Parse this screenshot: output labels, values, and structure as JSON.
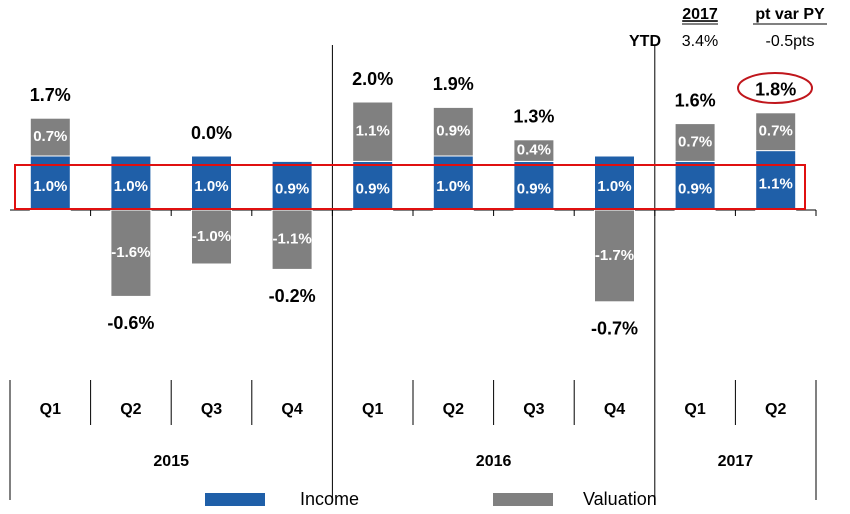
{
  "chart_data": {
    "type": "stacked-bar",
    "groups": [
      {
        "name": "2015",
        "categories": [
          "Q1",
          "Q2",
          "Q3",
          "Q4"
        ]
      },
      {
        "name": "2016",
        "categories": [
          "Q1",
          "Q2",
          "Q3",
          "Q4"
        ]
      },
      {
        "name": "2017",
        "categories": [
          "Q1",
          "Q2"
        ]
      }
    ],
    "series": [
      {
        "name": "Income",
        "color": "#1f5fa8",
        "values": [
          1.0,
          1.0,
          1.0,
          0.9,
          0.9,
          1.0,
          0.9,
          1.0,
          0.9,
          1.1
        ],
        "value_labels": [
          "1.0%",
          "1.0%",
          "1.0%",
          "0.9%",
          "0.9%",
          "1.0%",
          "0.9%",
          "1.0%",
          "0.9%",
          "1.1%"
        ]
      },
      {
        "name": "Valuation",
        "color": "#808080",
        "values": [
          0.7,
          -1.6,
          -1.0,
          -1.1,
          1.1,
          0.9,
          0.4,
          -1.7,
          0.7,
          0.7
        ],
        "value_labels": [
          "0.7%",
          "-1.6%",
          "-1.0%",
          "-1.1%",
          "1.1%",
          "0.9%",
          "0.4%",
          "-1.7%",
          "0.7%",
          "0.7%"
        ]
      }
    ],
    "totals": {
      "values": [
        1.7,
        -0.6,
        0.0,
        -0.2,
        2.0,
        1.9,
        1.3,
        -0.7,
        1.6,
        1.8
      ],
      "value_labels": [
        "1.7%",
        "-0.6%",
        "0.0%",
        "-0.2%",
        "2.0%",
        "1.9%",
        "1.3%",
        "-0.7%",
        "1.6%",
        "1.8%"
      ]
    },
    "ylim": [
      -2.5,
      3.0
    ],
    "ytd": {
      "headers": [
        "2017",
        "pt var PY"
      ],
      "label": "YTD",
      "cells": [
        "3.4%",
        "-0.5pts"
      ]
    }
  }
}
